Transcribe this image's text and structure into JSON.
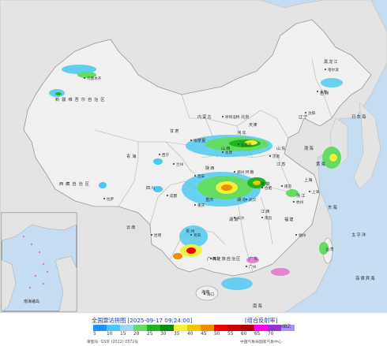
{
  "map": {
    "ocean_color": "#c7ddf2",
    "land_color": "#ececec",
    "province_labels": [
      "新疆维吾尔自治区",
      "西藏自治区",
      "青海",
      "甘肃",
      "四川",
      "云南",
      "贵州",
      "广西壮族自治区",
      "广东",
      "湖南",
      "江西",
      "福建",
      "浙江",
      "安徽",
      "江苏",
      "山东",
      "河南",
      "湖北",
      "陕西",
      "山西",
      "河北",
      "北京",
      "天津",
      "内蒙古",
      "辽宁",
      "吉林",
      "黑龙江",
      "宁夏",
      "重庆",
      "海南",
      "上海",
      "台湾"
    ],
    "city_labels": [
      "乌鲁木齐",
      "拉萨",
      "西宁",
      "兰州",
      "银川",
      "呼和浩特",
      "太原",
      "石家庄",
      "济南",
      "郑州",
      "武汉",
      "长沙",
      "南昌",
      "南京",
      "合肥",
      "杭州",
      "福州",
      "广州",
      "南宁",
      "昆明",
      "贵阳",
      "成都",
      "重庆",
      "西安",
      "沈阳",
      "长春",
      "哈尔滨",
      "上海",
      "海口"
    ],
    "sea_labels": [
      "东海",
      "南海",
      "黄海",
      "渤海",
      "太平洋",
      "日本海",
      "菲律宾海"
    ],
    "inset_labels": [
      "南海诸岛"
    ]
  },
  "legend": {
    "title": "全国雷达拼图 [2025-09-17 09:24:00]",
    "product": "[组合反射率]",
    "unit": "dBZ",
    "ticks": [
      "5",
      "10",
      "15",
      "20",
      "25",
      "30",
      "35",
      "40",
      "45",
      "50",
      "55",
      "60",
      "65",
      "70"
    ],
    "colors": [
      "#1e90ff",
      "#48c8f0",
      "#9ed7f5",
      "#64dc64",
      "#1eb41e",
      "#0a8c0a",
      "#f5f03c",
      "#f0c800",
      "#f08c00",
      "#f00000",
      "#c80000",
      "#aa0000",
      "#ff00f0",
      "#9632d2",
      "#ad90f0"
    ],
    "credit": "审图号: GS京 (2022) 0372号",
    "agency": "中国气象局国家气象中心"
  }
}
